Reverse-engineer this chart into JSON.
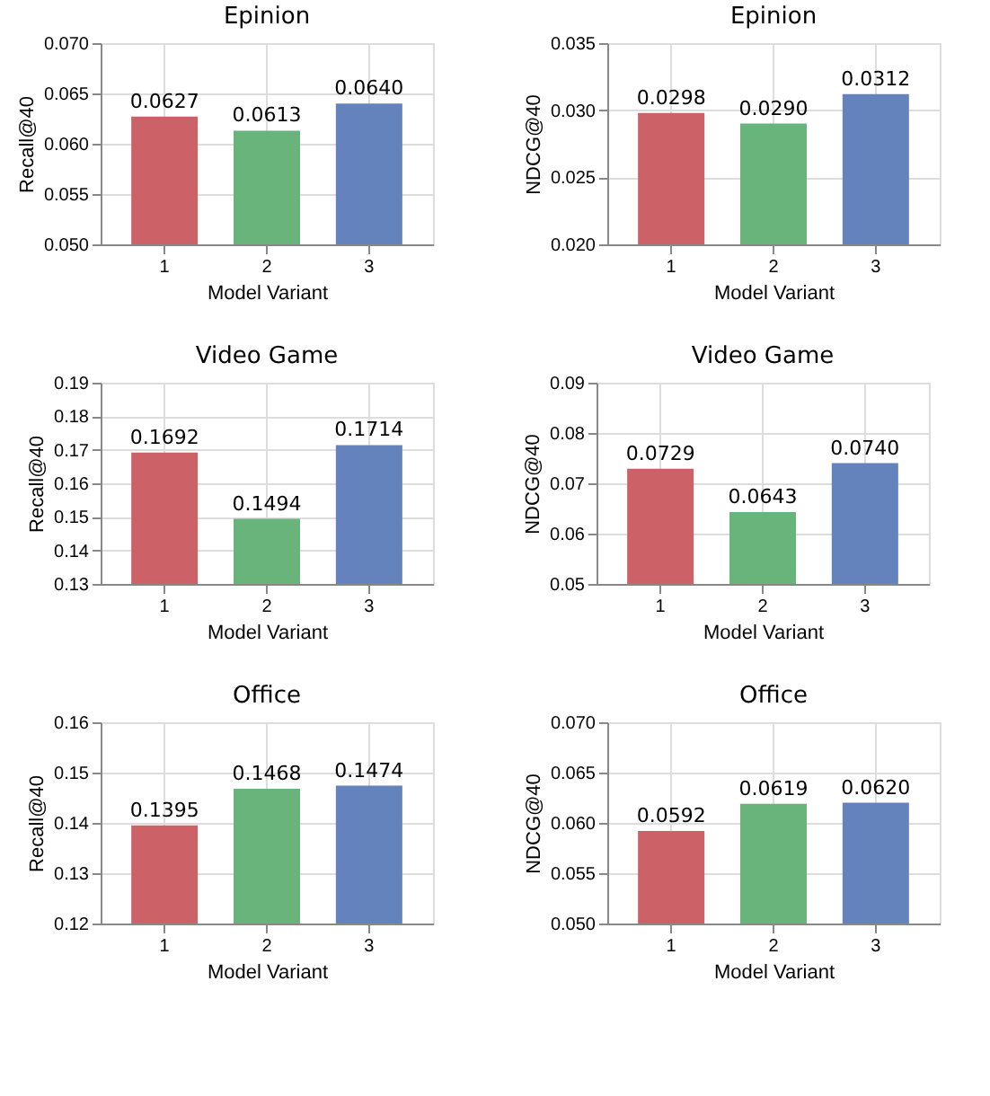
{
  "chart_data": [
    {
      "type": "bar",
      "title": "Epinion",
      "xlabel": "Model Variant",
      "ylabel": "Recall@40",
      "categories": [
        "1",
        "2",
        "3"
      ],
      "values": [
        0.0627,
        0.0613,
        0.064
      ],
      "value_labels": [
        "0.0627",
        "0.0613",
        "0.0640"
      ],
      "colors": [
        "#cd6168",
        "#69b47a",
        "#6483bd"
      ],
      "ylim": [
        0.05,
        0.07
      ],
      "yticks": [
        {
          "value": 0.05,
          "label": "0.050"
        },
        {
          "value": 0.055,
          "label": "0.055"
        },
        {
          "value": 0.06,
          "label": "0.060"
        },
        {
          "value": 0.065,
          "label": "0.065"
        },
        {
          "value": 0.07,
          "label": "0.070"
        }
      ],
      "grid": true
    },
    {
      "type": "bar",
      "title": "Epinion",
      "xlabel": "Model Variant",
      "ylabel": "NDCG@40",
      "categories": [
        "1",
        "2",
        "3"
      ],
      "values": [
        0.0298,
        0.029,
        0.0312
      ],
      "value_labels": [
        "0.0298",
        "0.0290",
        "0.0312"
      ],
      "colors": [
        "#cd6168",
        "#69b47a",
        "#6483bd"
      ],
      "ylim": [
        0.02,
        0.035
      ],
      "yticks": [
        {
          "value": 0.02,
          "label": "0.020"
        },
        {
          "value": 0.025,
          "label": "0.025"
        },
        {
          "value": 0.03,
          "label": "0.030"
        },
        {
          "value": 0.035,
          "label": "0.035"
        }
      ],
      "grid": true
    },
    {
      "type": "bar",
      "title": "Video Game",
      "xlabel": "Model Variant",
      "ylabel": "Recall@40",
      "categories": [
        "1",
        "2",
        "3"
      ],
      "values": [
        0.1692,
        0.1494,
        0.1714
      ],
      "value_labels": [
        "0.1692",
        "0.1494",
        "0.1714"
      ],
      "colors": [
        "#cd6168",
        "#69b47a",
        "#6483bd"
      ],
      "ylim": [
        0.13,
        0.19
      ],
      "yticks": [
        0.13,
        0.14,
        0.15,
        0.16,
        0.17,
        0.18,
        0.19
      ],
      "grid": true
    },
    {
      "type": "bar",
      "title": "Video Game",
      "xlabel": "Model Variant",
      "ylabel": "NDCG@40",
      "categories": [
        "1",
        "2",
        "3"
      ],
      "values": [
        0.0729,
        0.0643,
        0.074
      ],
      "value_labels": [
        "0.0729",
        "0.0643",
        "0.0740"
      ],
      "colors": [
        "#cd6168",
        "#69b47a",
        "#6483bd"
      ],
      "ylim": [
        0.05,
        0.09
      ],
      "yticks": [
        0.05,
        0.06,
        0.07,
        0.08,
        0.09
      ],
      "grid": true
    },
    {
      "type": "bar",
      "title": "Office",
      "xlabel": "Model Variant",
      "ylabel": "Recall@40",
      "categories": [
        "1",
        "2",
        "3"
      ],
      "values": [
        0.1395,
        0.1468,
        0.1474
      ],
      "value_labels": [
        "0.1395",
        "0.1468",
        "0.1474"
      ],
      "colors": [
        "#cd6168",
        "#69b47a",
        "#6483bd"
      ],
      "ylim": [
        0.12,
        0.16
      ],
      "yticks": [
        {
          "value": 0.12,
          "label": "0.12"
        },
        {
          "value": 0.13,
          "label": "0.13"
        },
        {
          "value": 0.14,
          "label": "0.14"
        },
        {
          "value": 0.15,
          "label": "0.15"
        },
        {
          "value": 0.16,
          "label": "0.16"
        }
      ],
      "grid": true
    },
    {
      "type": "bar",
      "title": "Office",
      "xlabel": "Model Variant",
      "ylabel": "NDCG@40",
      "categories": [
        "1",
        "2",
        "3"
      ],
      "values": [
        0.0592,
        0.0619,
        0.062
      ],
      "value_labels": [
        "0.0592",
        "0.0619",
        "0.0620"
      ],
      "colors": [
        "#cd6168",
        "#69b47a",
        "#6483bd"
      ],
      "ylim": [
        0.05,
        0.07
      ],
      "yticks": [
        {
          "value": 0.05,
          "label": "0.050"
        },
        {
          "value": 0.055,
          "label": "0.055"
        },
        {
          "value": 0.06,
          "label": "0.060"
        },
        {
          "value": 0.065,
          "label": "0.065"
        },
        {
          "value": 0.07,
          "label": "0.070"
        }
      ],
      "grid": true
    }
  ]
}
